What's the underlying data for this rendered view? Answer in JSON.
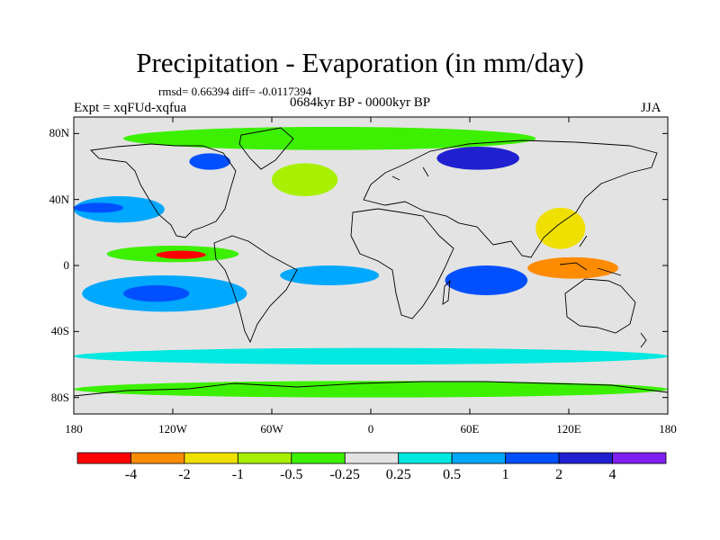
{
  "title": "Precipitation - Evaporation (in mm/day)",
  "stats": "rmsd= 0.66394 diff= -0.0117394",
  "experiment": "Expt = xqFUd-xqfua",
  "period": "0684kyr BP - 0000kyr BP",
  "season": "JJA",
  "colors": {
    "ocean_bg": "#e3e3e3",
    "coastline": "#000000"
  },
  "chart_data": {
    "type": "map",
    "projection": "cylindrical-equidistant",
    "lon_range": [
      -180,
      180
    ],
    "lat_range": [
      -90,
      90
    ],
    "x_ticks": [
      {
        "value": -180,
        "label": "180"
      },
      {
        "value": -120,
        "label": "120W"
      },
      {
        "value": -60,
        "label": "60W"
      },
      {
        "value": 0,
        "label": "0"
      },
      {
        "value": 60,
        "label": "60E"
      },
      {
        "value": 120,
        "label": "120E"
      },
      {
        "value": 180,
        "label": "180"
      }
    ],
    "y_ticks": [
      {
        "value": 80,
        "label": "80N"
      },
      {
        "value": 40,
        "label": "40N"
      },
      {
        "value": 0,
        "label": "0"
      },
      {
        "value": -40,
        "label": "40S"
      },
      {
        "value": -80,
        "label": "80S"
      }
    ],
    "colorbar": {
      "boundaries": [
        "-4",
        "-2",
        "-1",
        "-0.5",
        "-0.25",
        "0.25",
        "0.5",
        "1",
        "2",
        "4"
      ],
      "colors": [
        "#ff0000",
        "#ff8c00",
        "#f0e000",
        "#a8f000",
        "#3cf000",
        "#e3e3e3",
        "#00e8e0",
        "#00a8ff",
        "#0050ff",
        "#2020d0",
        "#8020f0"
      ]
    },
    "regions": [
      {
        "name": "east-pacific-itcz",
        "lon": [
          -160,
          -80
        ],
        "lat": [
          2,
          12
        ],
        "level": 4
      },
      {
        "name": "east-pacific-dry",
        "lon": [
          -130,
          -100
        ],
        "lat": [
          4,
          9
        ],
        "level": 0
      },
      {
        "name": "south-pacific-wet",
        "lon": [
          -175,
          -75
        ],
        "lat": [
          -28,
          -6
        ],
        "level": 7
      },
      {
        "name": "south-pacific-core",
        "lon": [
          -150,
          -110
        ],
        "lat": [
          -22,
          -12
        ],
        "level": 8
      },
      {
        "name": "north-pacific-wet",
        "lon": [
          -180,
          -125
        ],
        "lat": [
          26,
          42
        ],
        "level": 7
      },
      {
        "name": "north-pacific-core",
        "lon": [
          -180,
          -150
        ],
        "lat": [
          32,
          38
        ],
        "level": 8
      },
      {
        "name": "arctic-green",
        "lon": [
          -150,
          100
        ],
        "lat": [
          70,
          84
        ],
        "level": 4
      },
      {
        "name": "north-atlantic",
        "lon": [
          -60,
          -20
        ],
        "lat": [
          42,
          62
        ],
        "level": 3
      },
      {
        "name": "siberia-wet",
        "lon": [
          40,
          90
        ],
        "lat": [
          58,
          72
        ],
        "level": 9
      },
      {
        "name": "canada-wet",
        "lon": [
          -110,
          -85
        ],
        "lat": [
          58,
          68
        ],
        "level": 8
      },
      {
        "name": "tropical-atlantic",
        "lon": [
          -55,
          5
        ],
        "lat": [
          -12,
          0
        ],
        "level": 7
      },
      {
        "name": "indian-ocean-wet",
        "lon": [
          45,
          95
        ],
        "lat": [
          -18,
          0
        ],
        "level": 8
      },
      {
        "name": "east-asia-dry",
        "lon": [
          100,
          130
        ],
        "lat": [
          10,
          35
        ],
        "level": 2
      },
      {
        "name": "west-pacific-wet",
        "lon": [
          130,
          180
        ],
        "lat": [
          5,
          30
        ],
        "level": 5
      },
      {
        "name": "maritime-dry",
        "lon": [
          95,
          150
        ],
        "lat": [
          -8,
          5
        ],
        "level": 1
      },
      {
        "name": "southern-ocean",
        "lon": [
          -180,
          180
        ],
        "lat": [
          -60,
          -50
        ],
        "level": 6
      },
      {
        "name": "antarctic-green",
        "lon": [
          -180,
          180
        ],
        "lat": [
          -80,
          -70
        ],
        "level": 4
      }
    ]
  }
}
